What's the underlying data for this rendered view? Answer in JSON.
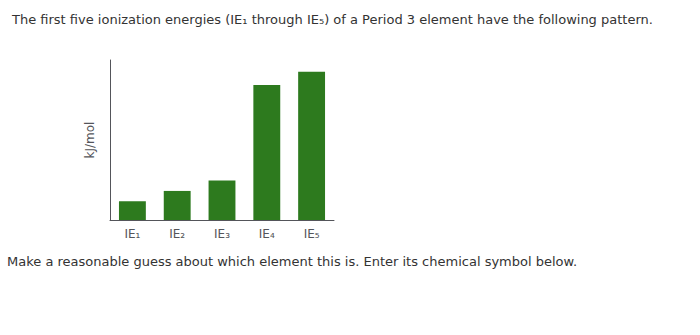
{
  "chart_data": {
    "type": "bar",
    "title": "The first five ionization energies (IE₁ through IE₅) of a Period 3 element have the following pattern.",
    "categories": [
      "IE₁",
      "IE₂",
      "IE₃",
      "IE₄",
      "IE₅"
    ],
    "values": [
      1.0,
      1.55,
      2.1,
      7.2,
      7.9
    ],
    "color": "#2d7a1e",
    "ylabel": "kJ/mol",
    "ylim": [
      0,
      8.532
    ],
    "tick_labels": "x",
    "grid": false,
    "annotations": [
      "Make a reasonable guess about which element this is. Enter its chemical symbol below."
    ]
  }
}
